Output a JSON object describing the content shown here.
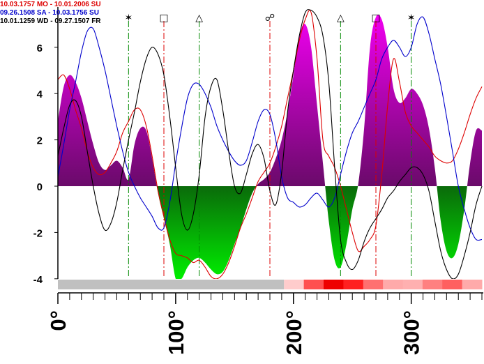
{
  "chart_data": {
    "type": "area",
    "title": "",
    "xlabel": "",
    "ylabel": "",
    "xlim": [
      0,
      360
    ],
    "ylim": [
      -4.5,
      7.5
    ],
    "x_ticks": [
      0,
      100,
      200,
      300
    ],
    "x_tick_labels": [
      "0°",
      "100°",
      "200°",
      "300°"
    ],
    "y_ticks": [
      -4,
      -2,
      0,
      2,
      4,
      6
    ],
    "y_tick_labels": [
      "-4",
      "-2",
      "0",
      "2",
      "4",
      "6"
    ],
    "grid": false,
    "legend": {
      "placement": "top-left",
      "entries": [
        {
          "text": "10.03.1757 MO - 10.01.2006 SU",
          "color": "#dd0000"
        },
        {
          "text": "09.26.1508 SA - 10.03.1756 SU",
          "color": "#0000cc"
        },
        {
          "text": "10.01.1259 WD - 09.27.1507 FR",
          "color": "#000000"
        }
      ]
    },
    "aspects": [
      {
        "x": 60,
        "symbol": "✶",
        "name": "sextile",
        "color": "#008800"
      },
      {
        "x": 90,
        "symbol": "□",
        "name": "square",
        "color": "#dd0000"
      },
      {
        "x": 120,
        "symbol": "△",
        "name": "trine",
        "color": "#008800"
      },
      {
        "x": 180,
        "symbol": "☍",
        "name": "opposition",
        "color": "#dd0000"
      },
      {
        "x": 240,
        "symbol": "△",
        "name": "trine",
        "color": "#008800"
      },
      {
        "x": 270,
        "symbol": "□",
        "name": "square",
        "color": "#dd0000"
      },
      {
        "x": 300,
        "symbol": "✶",
        "name": "sextile",
        "color": "#008800"
      }
    ],
    "area_series": {
      "positive_color": "#ee00ee",
      "negative_color": "#00ee00",
      "x": [
        0,
        5,
        10,
        15,
        20,
        25,
        30,
        35,
        40,
        45,
        50,
        55,
        60,
        65,
        70,
        75,
        80,
        85,
        90,
        95,
        100,
        105,
        110,
        115,
        120,
        125,
        130,
        135,
        140,
        145,
        150,
        155,
        160,
        165,
        170,
        175,
        180,
        185,
        190,
        195,
        200,
        205,
        210,
        215,
        220,
        225,
        230,
        235,
        240,
        245,
        250,
        255,
        260,
        265,
        270,
        275,
        280,
        285,
        290,
        295,
        300,
        305,
        310,
        315,
        320,
        325,
        330,
        335,
        340,
        345,
        350,
        355,
        360
      ],
      "y": [
        2.8,
        4.3,
        4.8,
        4.5,
        3.8,
        2.8,
        1.8,
        1.0,
        0.7,
        0.9,
        1.1,
        0.8,
        0.3,
        1.8,
        2.5,
        2.4,
        1.2,
        -0.3,
        -1.4,
        -2.5,
        -4.0,
        -4.0,
        -3.5,
        -3.2,
        -3.1,
        -3.3,
        -3.6,
        -3.8,
        -3.7,
        -3.2,
        -2.5,
        -1.8,
        -1.0,
        -0.3,
        0.1,
        0.3,
        0.6,
        1.2,
        2.0,
        3.2,
        4.8,
        6.5,
        7.0,
        6.0,
        3.5,
        1.0,
        -1.5,
        -3.2,
        -3.5,
        -2.5,
        -1.0,
        0.1,
        2.5,
        6.0,
        7.3,
        7.2,
        6.0,
        4.2,
        3.6,
        3.8,
        4.2,
        4.0,
        3.5,
        2.5,
        0.8,
        -1.5,
        -2.8,
        -3.1,
        -2.5,
        -1.0,
        1.0,
        2.4,
        2.4
      ]
    },
    "series": [
      {
        "color": "#dd0000",
        "x": [
          0,
          5,
          10,
          15,
          20,
          25,
          30,
          35,
          40,
          45,
          50,
          55,
          60,
          65,
          70,
          75,
          80,
          85,
          90,
          95,
          100,
          105,
          110,
          115,
          120,
          125,
          130,
          135,
          140,
          145,
          150,
          155,
          160,
          165,
          170,
          175,
          180,
          185,
          190,
          195,
          200,
          205,
          210,
          215,
          220,
          225,
          230,
          235,
          240,
          245,
          250,
          255,
          260,
          265,
          270,
          275,
          280,
          285,
          290,
          295,
          300,
          305,
          310,
          315,
          320,
          325,
          330,
          335,
          340,
          345,
          350,
          355,
          360
        ],
        "y": [
          4.6,
          4.8,
          4.2,
          3.3,
          2.5,
          1.5,
          0.8,
          0.5,
          0.6,
          1.0,
          1.5,
          2.3,
          2.8,
          3.3,
          3.3,
          2.6,
          1.3,
          -0.2,
          -1.3,
          -2.3,
          -2.9,
          -3.0,
          -3.1,
          -3.3,
          -3.2,
          -3.5,
          -3.9,
          -4.0,
          -3.8,
          -3.3,
          -2.6,
          -1.8,
          -1.2,
          -0.5,
          0.2,
          0.6,
          1.0,
          1.7,
          2.6,
          3.8,
          5.0,
          6.3,
          7.2,
          7.5,
          5.5,
          2.0,
          1.3,
          0.8,
          0.0,
          -1.0,
          -2.0,
          -2.8,
          -2.6,
          -2.3,
          -1.7,
          0.5,
          3.5,
          5.5,
          4.5,
          3.2,
          2.6,
          2.3,
          2.0,
          1.7,
          1.3,
          1.1,
          1.0,
          1.1,
          1.6,
          2.3,
          3.1,
          3.8,
          4.3
        ]
      },
      {
        "color": "#0000cc",
        "x": [
          0,
          5,
          10,
          15,
          20,
          25,
          30,
          35,
          40,
          45,
          50,
          55,
          60,
          65,
          70,
          75,
          80,
          85,
          90,
          95,
          100,
          105,
          110,
          115,
          120,
          125,
          130,
          135,
          140,
          145,
          150,
          155,
          160,
          165,
          170,
          175,
          180,
          185,
          190,
          195,
          200,
          205,
          210,
          215,
          220,
          225,
          230,
          235,
          240,
          245,
          250,
          255,
          260,
          265,
          270,
          275,
          280,
          285,
          290,
          295,
          300,
          305,
          310,
          315,
          320,
          325,
          330,
          335,
          340,
          345,
          350,
          355,
          360
        ],
        "y": [
          0.4,
          1.8,
          3.3,
          4.5,
          5.8,
          6.7,
          6.8,
          6.0,
          5.0,
          3.8,
          2.6,
          1.5,
          0.6,
          0.0,
          -0.5,
          -0.9,
          -1.3,
          -1.8,
          -1.8,
          -0.7,
          1.0,
          2.5,
          3.8,
          4.4,
          4.4,
          4.0,
          3.4,
          2.6,
          2.0,
          1.5,
          1.1,
          0.9,
          1.1,
          1.9,
          2.8,
          3.3,
          3.1,
          2.0,
          0.4,
          -0.5,
          -0.7,
          -0.9,
          -0.8,
          -0.5,
          -0.3,
          -0.6,
          -0.9,
          -0.5,
          0.5,
          1.5,
          2.3,
          2.8,
          3.4,
          4.0,
          4.6,
          5.5,
          6.0,
          6.3,
          6.0,
          5.6,
          6.0,
          7.0,
          7.3,
          6.6,
          5.5,
          4.4,
          3.0,
          1.5,
          0.0,
          -1.0,
          -1.8,
          -2.3,
          -2.3
        ]
      },
      {
        "color": "#000000",
        "x": [
          0,
          5,
          10,
          15,
          20,
          25,
          30,
          35,
          40,
          45,
          50,
          55,
          60,
          65,
          70,
          75,
          80,
          85,
          90,
          95,
          100,
          105,
          110,
          115,
          120,
          125,
          130,
          135,
          140,
          145,
          150,
          155,
          160,
          165,
          170,
          175,
          180,
          185,
          190,
          195,
          200,
          205,
          210,
          215,
          220,
          225,
          230,
          235,
          240,
          245,
          250,
          255,
          260,
          265,
          270,
          275,
          280,
          285,
          290,
          295,
          300,
          305,
          310,
          315,
          320,
          325,
          330,
          335,
          340,
          345,
          350,
          355,
          360
        ],
        "y": [
          1.3,
          2.5,
          3.5,
          3.7,
          3.0,
          1.5,
          0.0,
          -1.2,
          -1.9,
          -1.6,
          -0.7,
          0.7,
          2.0,
          3.2,
          4.5,
          5.5,
          6.0,
          5.7,
          4.8,
          3.0,
          0.8,
          -1.2,
          -1.9,
          -1.2,
          0.5,
          3.0,
          4.3,
          4.6,
          3.3,
          1.5,
          0.0,
          -0.3,
          0.5,
          1.4,
          1.8,
          1.2,
          -0.2,
          -0.8,
          0.6,
          3.2,
          5.0,
          6.5,
          7.5,
          7.6,
          7.3,
          6.5,
          4.5,
          0.8,
          -2.3,
          -3.3,
          -3.6,
          -3.2,
          -2.4,
          -1.8,
          -1.4,
          -1.0,
          -0.5,
          -0.2,
          0.2,
          0.5,
          0.8,
          0.8,
          0.5,
          -0.2,
          -1.5,
          -2.8,
          -3.6,
          -4.0,
          -3.8,
          -3.0,
          -2.0,
          -0.8,
          0.0
        ]
      }
    ],
    "bottom_band": {
      "split_x": 192,
      "left_color": "#c0c0c0",
      "right_colors": [
        "#ffcccc",
        "#ff5050",
        "#ee0000",
        "#ff2020",
        "#ff7070",
        "#ffaaaa",
        "#ffb0b0",
        "#ff8080",
        "#ff6060",
        "#ffaaaa"
      ]
    }
  }
}
